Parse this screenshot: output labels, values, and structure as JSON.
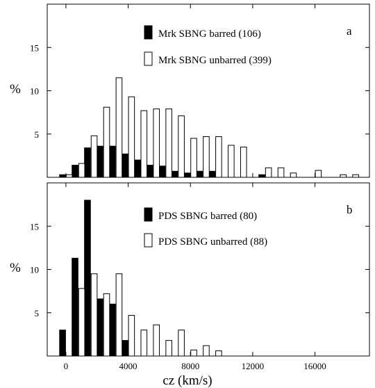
{
  "chart_data": {
    "type": "bar",
    "x_range": [
      -1200,
      19500
    ],
    "x_tick_labels": [
      "0",
      "4000",
      "8000",
      "12000",
      "16000"
    ],
    "xlabel": "cz (km/s)",
    "panels": [
      {
        "letter": "a",
        "ylabel": "%",
        "y_range": [
          0,
          20
        ],
        "y_tick_labels": [
          "5",
          "10",
          "15"
        ],
        "series": [
          {
            "name": "Mrk SBNG barred (106)",
            "fill": "#000000",
            "x": [
              0,
              800,
              1600,
              2400,
              3200,
              4000,
              4800,
              5600,
              6400,
              7200,
              8000,
              8800,
              9600,
              10400,
              12800
            ],
            "values": [
              0.3,
              1.4,
              3.4,
              3.6,
              3.6,
              2.7,
              2.0,
              1.4,
              1.3,
              0.7,
              0.5,
              0.7,
              0.7,
              0.0,
              0.3
            ]
          },
          {
            "name": "Mrk SBNG unbarred (399)",
            "fill": "#ffffff",
            "x": [
              0,
              800,
              1600,
              2400,
              3200,
              4000,
              4800,
              5600,
              6400,
              7200,
              8000,
              8800,
              9600,
              10400,
              11200,
              12000,
              12800,
              13600,
              14400,
              15200,
              16000,
              16800,
              17600,
              18400,
              19200
            ],
            "values": [
              0.3,
              1.6,
              4.8,
              8.1,
              11.5,
              9.3,
              7.7,
              7.9,
              7.9,
              7.1,
              4.5,
              4.7,
              4.7,
              3.7,
              3.5,
              0.0,
              1.1,
              1.1,
              0.5,
              0.0,
              0.8,
              0.0,
              0.3,
              0.3,
              0.0
            ]
          }
        ]
      },
      {
        "letter": "b",
        "ylabel": "%",
        "y_range": [
          0,
          20
        ],
        "y_tick_labels": [
          "5",
          "10",
          "15"
        ],
        "series": [
          {
            "name": "PDS SBNG barred (80)",
            "fill": "#000000",
            "x": [
              0,
              800,
              1600,
              2400,
              3200,
              4000
            ],
            "values": [
              3.0,
              11.3,
              18.0,
              6.6,
              6.0,
              1.8
            ]
          },
          {
            "name": "PDS SBNG unbarred (88)",
            "fill": "#ffffff",
            "x": [
              800,
              1600,
              2400,
              3200,
              4000,
              4800,
              5600,
              6400,
              7200,
              8000,
              8800,
              9600,
              10400,
              11200,
              12000
            ],
            "values": [
              7.8,
              9.5,
              7.2,
              9.5,
              4.7,
              3.0,
              3.6,
              1.8,
              3.0,
              0.7,
              1.2,
              0.6,
              0.0,
              0.0,
              0.0
            ]
          }
        ]
      }
    ]
  }
}
